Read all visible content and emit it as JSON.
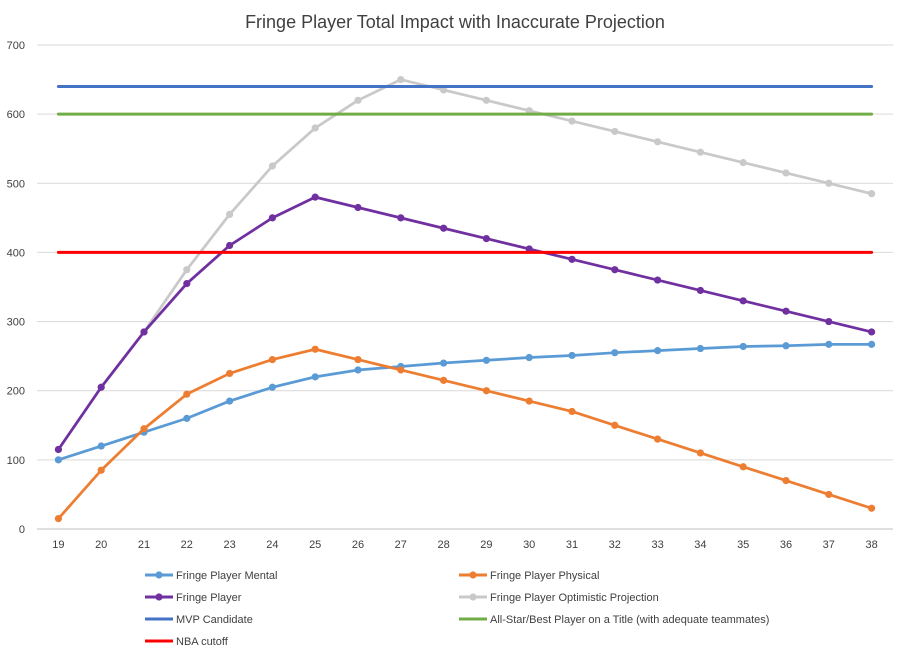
{
  "chart_data": {
    "type": "line",
    "title": "Fringe Player Total  Impact with Inaccurate Projection",
    "xlabel": "",
    "ylabel": "",
    "x": [
      19,
      20,
      21,
      22,
      23,
      24,
      25,
      26,
      27,
      28,
      29,
      30,
      31,
      32,
      33,
      34,
      35,
      36,
      37,
      38
    ],
    "ylim": [
      0,
      700
    ],
    "yticks": [
      0,
      100,
      200,
      300,
      400,
      500,
      600,
      700
    ],
    "grid": "horizontal",
    "legend_position": "bottom",
    "series": [
      {
        "name": "Fringe Player Mental",
        "color": "#5b9bd5",
        "markers": true,
        "values": [
          100,
          120,
          140,
          160,
          185,
          205,
          220,
          230,
          235,
          240,
          244,
          248,
          251,
          255,
          258,
          261,
          264,
          265,
          267,
          267
        ]
      },
      {
        "name": "Fringe Player Physical",
        "color": "#ed7d31",
        "markers": true,
        "values": [
          15,
          85,
          145,
          195,
          225,
          245,
          260,
          245,
          230,
          215,
          200,
          185,
          170,
          150,
          130,
          110,
          90,
          70,
          50,
          30
        ]
      },
      {
        "name": "Fringe Player",
        "color": "#7030a0",
        "markers": true,
        "values": [
          115,
          205,
          285,
          355,
          410,
          450,
          480,
          465,
          450,
          435,
          420,
          405,
          390,
          375,
          360,
          345,
          330,
          315,
          300,
          285
        ]
      },
      {
        "name": "Fringe Player Optimistic Projection",
        "color": "#c9c9c9",
        "markers": true,
        "values": [
          115,
          205,
          285,
          375,
          455,
          525,
          580,
          620,
          650,
          635,
          620,
          605,
          590,
          575,
          560,
          545,
          530,
          515,
          500,
          485
        ]
      },
      {
        "name": "MVP Candidate",
        "color": "#4472c4",
        "markers": false,
        "values": [
          640,
          640,
          640,
          640,
          640,
          640,
          640,
          640,
          640,
          640,
          640,
          640,
          640,
          640,
          640,
          640,
          640,
          640,
          640,
          640
        ]
      },
      {
        "name": "All-Star/Best Player on a Title (with adequate teammates)",
        "color": "#70ad47",
        "markers": false,
        "values": [
          600,
          600,
          600,
          600,
          600,
          600,
          600,
          600,
          600,
          600,
          600,
          600,
          600,
          600,
          600,
          600,
          600,
          600,
          600,
          600
        ]
      },
      {
        "name": "NBA cutoff",
        "color": "#ff0000",
        "markers": false,
        "values": [
          400,
          400,
          400,
          400,
          400,
          400,
          400,
          400,
          400,
          400,
          400,
          400,
          400,
          400,
          400,
          400,
          400,
          400,
          400,
          400
        ]
      }
    ]
  }
}
